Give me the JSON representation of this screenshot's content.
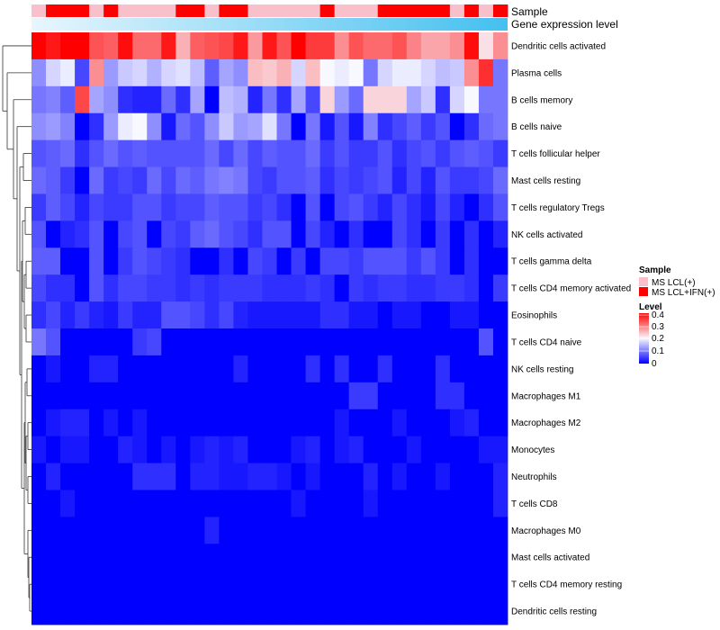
{
  "chart_data": {
    "type": "heatmap",
    "rows": [
      "Dendritic cells activated",
      "Plasma cells",
      "B cells memory",
      "B cells naive",
      "T cells follicular helper",
      "Mast cells resting",
      "T cells regulatory  Tregs",
      "NK cells activated",
      "T cells gamma delta",
      "T cells CD4 memory activated",
      "Eosinophils",
      "T cells CD4 naive",
      "NK cells resting",
      "Macrophages M1",
      "Macrophages M2",
      "Monocytes",
      "Neutrophils",
      "T cells CD8",
      "Macrophages M0",
      "Mast cells activated",
      "T cells CD4 memory resting",
      "Dendritic cells resting"
    ],
    "column_count": 33,
    "sample_groups": [
      0,
      1,
      1,
      1,
      0,
      1,
      0,
      0,
      0,
      0,
      1,
      1,
      0,
      1,
      1,
      0,
      0,
      0,
      0,
      0,
      1,
      0,
      0,
      0,
      1,
      1,
      1,
      1,
      1,
      0,
      1,
      0,
      1
    ],
    "annotations": {
      "top_track_label": "Sample",
      "second_track_label": "Gene expression level"
    },
    "legend": {
      "sample_title": "Sample",
      "sample_items": [
        {
          "label": "MS LCL(+)",
          "color": "#F9C0CB"
        },
        {
          "label": "MS LCL+IFN(+)",
          "color": "#FF0000"
        }
      ],
      "level_title": "Level",
      "level_ticks": [
        "0.4",
        "0.3",
        "0.2",
        "0.1",
        "0"
      ],
      "range": [
        0,
        0.42
      ]
    },
    "colors": {
      "low": "#0000FF",
      "mid": "#F8F8FF",
      "high": "#FF0000",
      "gradient_start": "#E8F6FD",
      "gradient_end": "#44C0F0"
    },
    "values": [
      [
        0.42,
        0.4,
        0.42,
        0.42,
        0.35,
        0.34,
        0.41,
        0.33,
        0.33,
        0.4,
        0.27,
        0.34,
        0.35,
        0.36,
        0.4,
        0.29,
        0.4,
        0.35,
        0.42,
        0.37,
        0.37,
        0.3,
        0.35,
        0.33,
        0.33,
        0.35,
        0.31,
        0.28,
        0.28,
        0.3,
        0.41,
        0.23,
        0.3
      ],
      [
        0.12,
        0.18,
        0.2,
        0.06,
        0.3,
        0.13,
        0.17,
        0.18,
        0.15,
        0.18,
        0.19,
        0.16,
        0.08,
        0.14,
        0.12,
        0.26,
        0.25,
        0.27,
        0.18,
        0.26,
        0.21,
        0.2,
        0.21,
        0.1,
        0.18,
        0.2,
        0.2,
        0.18,
        0.16,
        0.17,
        0.3,
        0.38,
        0.1
      ],
      [
        0.1,
        0.11,
        0.08,
        0.36,
        0.14,
        0.12,
        0.04,
        0.03,
        0.03,
        0.09,
        0.04,
        0.14,
        0.0,
        0.16,
        0.15,
        0.03,
        0.1,
        0.04,
        0.14,
        0.06,
        0.24,
        0.13,
        0.09,
        0.24,
        0.24,
        0.24,
        0.14,
        0.17,
        0.04,
        0.18,
        0.21,
        0.1,
        0.1
      ],
      [
        0.12,
        0.13,
        0.11,
        0.0,
        0.04,
        0.13,
        0.2,
        0.21,
        0.12,
        0.02,
        0.09,
        0.07,
        0.12,
        0.17,
        0.13,
        0.14,
        0.19,
        0.1,
        0.0,
        0.1,
        0.02,
        0.07,
        0.02,
        0.11,
        0.04,
        0.06,
        0.08,
        0.05,
        0.07,
        0.0,
        0.04,
        0.09,
        0.1
      ],
      [
        0.07,
        0.08,
        0.09,
        0.04,
        0.07,
        0.09,
        0.07,
        0.08,
        0.07,
        0.07,
        0.07,
        0.07,
        0.09,
        0.06,
        0.09,
        0.06,
        0.08,
        0.07,
        0.07,
        0.09,
        0.05,
        0.07,
        0.05,
        0.05,
        0.07,
        0.04,
        0.06,
        0.07,
        0.05,
        0.07,
        0.08,
        0.07,
        0.05
      ],
      [
        0.09,
        0.08,
        0.05,
        0.0,
        0.09,
        0.05,
        0.06,
        0.05,
        0.09,
        0.06,
        0.09,
        0.08,
        0.1,
        0.11,
        0.1,
        0.06,
        0.05,
        0.07,
        0.07,
        0.08,
        0.04,
        0.06,
        0.05,
        0.06,
        0.07,
        0.03,
        0.06,
        0.03,
        0.07,
        0.05,
        0.05,
        0.06,
        0.09
      ],
      [
        0.05,
        0.08,
        0.06,
        0.03,
        0.06,
        0.05,
        0.05,
        0.07,
        0.07,
        0.05,
        0.06,
        0.06,
        0.08,
        0.07,
        0.07,
        0.05,
        0.06,
        0.04,
        0.0,
        0.07,
        0.0,
        0.06,
        0.07,
        0.05,
        0.03,
        0.06,
        0.04,
        0.02,
        0.06,
        0.03,
        0.0,
        0.04,
        0.07
      ],
      [
        0.07,
        0.0,
        0.03,
        0.04,
        0.07,
        0.0,
        0.06,
        0.07,
        0.0,
        0.06,
        0.05,
        0.08,
        0.09,
        0.07,
        0.06,
        0.04,
        0.07,
        0.07,
        0.0,
        0.06,
        0.03,
        0.0,
        0.04,
        0.0,
        0.0,
        0.06,
        0.04,
        0.0,
        0.05,
        0.0,
        0.04,
        0.0,
        0.03
      ],
      [
        0.08,
        0.08,
        0.0,
        0.0,
        0.07,
        0.0,
        0.05,
        0.07,
        0.06,
        0.05,
        0.04,
        0.0,
        0.0,
        0.04,
        0.0,
        0.06,
        0.05,
        0.0,
        0.05,
        0.0,
        0.06,
        0.06,
        0.05,
        0.07,
        0.07,
        0.07,
        0.05,
        0.07,
        0.05,
        0.0,
        0.04,
        0.0,
        0.0
      ],
      [
        0.06,
        0.04,
        0.04,
        0.0,
        0.07,
        0.04,
        0.06,
        0.06,
        0.05,
        0.05,
        0.04,
        0.05,
        0.04,
        0.05,
        0.05,
        0.05,
        0.04,
        0.04,
        0.04,
        0.05,
        0.04,
        0.0,
        0.05,
        0.04,
        0.05,
        0.05,
        0.04,
        0.04,
        0.05,
        0.05,
        0.04,
        0.0,
        0.05
      ],
      [
        0.04,
        0.06,
        0.03,
        0.05,
        0.03,
        0.02,
        0.05,
        0.03,
        0.03,
        0.07,
        0.07,
        0.06,
        0.04,
        0.06,
        0.03,
        0.02,
        0.02,
        0.02,
        0.02,
        0.02,
        0.04,
        0.04,
        0.02,
        0.02,
        0.0,
        0.02,
        0.02,
        0.0,
        0.0,
        0.02,
        0.02,
        0.0,
        0.0
      ],
      [
        0.1,
        0.07,
        0.0,
        0.0,
        0.0,
        0.0,
        0.0,
        0.05,
        0.06,
        0.0,
        0.0,
        0.0,
        0.0,
        0.0,
        0.0,
        0.0,
        0.0,
        0.0,
        0.0,
        0.0,
        0.0,
        0.0,
        0.0,
        0.0,
        0.0,
        0.0,
        0.0,
        0.0,
        0.0,
        0.0,
        0.0,
        0.07,
        0.0
      ],
      [
        0.0,
        0.02,
        0.0,
        0.0,
        0.03,
        0.03,
        0.0,
        0.0,
        0.0,
        0.0,
        0.0,
        0.0,
        0.0,
        0.0,
        0.03,
        0.0,
        0.0,
        0.0,
        0.0,
        0.04,
        0.0,
        0.04,
        0.0,
        0.0,
        0.04,
        0.0,
        0.0,
        0.0,
        0.04,
        0.0,
        0.0,
        0.0,
        0.0
      ],
      [
        0.0,
        0.0,
        0.0,
        0.0,
        0.0,
        0.0,
        0.0,
        0.0,
        0.0,
        0.0,
        0.0,
        0.0,
        0.0,
        0.0,
        0.0,
        0.0,
        0.0,
        0.0,
        0.0,
        0.0,
        0.0,
        0.0,
        0.05,
        0.05,
        0.0,
        0.0,
        0.0,
        0.0,
        0.04,
        0.04,
        0.0,
        0.0,
        0.0
      ],
      [
        0.0,
        0.02,
        0.03,
        0.03,
        0.0,
        0.02,
        0.0,
        0.02,
        0.0,
        0.0,
        0.0,
        0.0,
        0.0,
        0.0,
        0.0,
        0.0,
        0.0,
        0.0,
        0.0,
        0.0,
        0.0,
        0.02,
        0.0,
        0.0,
        0.0,
        0.02,
        0.0,
        0.0,
        0.0,
        0.02,
        0.03,
        0.0,
        0.0
      ],
      [
        0.02,
        0.0,
        0.02,
        0.02,
        0.0,
        0.0,
        0.03,
        0.02,
        0.0,
        0.02,
        0.0,
        0.02,
        0.03,
        0.02,
        0.03,
        0.0,
        0.0,
        0.0,
        0.02,
        0.03,
        0.0,
        0.02,
        0.03,
        0.0,
        0.0,
        0.0,
        0.02,
        0.0,
        0.0,
        0.0,
        0.0,
        0.02,
        0.02
      ],
      [
        0.0,
        0.03,
        0.0,
        0.0,
        0.0,
        0.0,
        0.0,
        0.04,
        0.04,
        0.04,
        0.0,
        0.03,
        0.03,
        0.02,
        0.02,
        0.03,
        0.03,
        0.02,
        0.0,
        0.02,
        0.0,
        0.0,
        0.0,
        0.03,
        0.0,
        0.02,
        0.0,
        0.0,
        0.02,
        0.0,
        0.0,
        0.0,
        0.03
      ],
      [
        0.0,
        0.0,
        0.02,
        0.0,
        0.0,
        0.0,
        0.0,
        0.0,
        0.0,
        0.0,
        0.0,
        0.0,
        0.0,
        0.0,
        0.0,
        0.0,
        0.0,
        0.0,
        0.02,
        0.0,
        0.0,
        0.0,
        0.0,
        0.02,
        0.0,
        0.0,
        0.0,
        0.0,
        0.0,
        0.0,
        0.0,
        0.0,
        0.03
      ],
      [
        0.0,
        0.0,
        0.0,
        0.0,
        0.0,
        0.0,
        0.0,
        0.0,
        0.0,
        0.0,
        0.0,
        0.0,
        0.03,
        0.0,
        0.0,
        0.0,
        0.0,
        0.0,
        0.0,
        0.0,
        0.0,
        0.0,
        0.0,
        0.0,
        0.0,
        0.0,
        0.0,
        0.0,
        0.0,
        0.0,
        0.0,
        0.0,
        0.0
      ],
      [
        0.0,
        0.0,
        0.0,
        0.0,
        0.0,
        0.0,
        0.0,
        0.0,
        0.0,
        0.0,
        0.0,
        0.0,
        0.0,
        0.0,
        0.0,
        0.0,
        0.0,
        0.0,
        0.0,
        0.0,
        0.0,
        0.0,
        0.0,
        0.0,
        0.0,
        0.0,
        0.0,
        0.0,
        0.0,
        0.0,
        0.0,
        0.0,
        0.0
      ],
      [
        0.0,
        0.0,
        0.0,
        0.0,
        0.0,
        0.0,
        0.0,
        0.0,
        0.0,
        0.0,
        0.0,
        0.0,
        0.0,
        0.0,
        0.0,
        0.0,
        0.0,
        0.0,
        0.0,
        0.0,
        0.0,
        0.0,
        0.0,
        0.0,
        0.0,
        0.0,
        0.0,
        0.0,
        0.0,
        0.0,
        0.0,
        0.0,
        0.0
      ],
      [
        0.0,
        0.0,
        0.0,
        0.0,
        0.0,
        0.0,
        0.0,
        0.0,
        0.0,
        0.0,
        0.0,
        0.0,
        0.0,
        0.0,
        0.0,
        0.0,
        0.0,
        0.0,
        0.0,
        0.0,
        0.0,
        0.0,
        0.0,
        0.0,
        0.0,
        0.0,
        0.0,
        0.0,
        0.0,
        0.0,
        0.0,
        0.0,
        0.0
      ]
    ]
  }
}
